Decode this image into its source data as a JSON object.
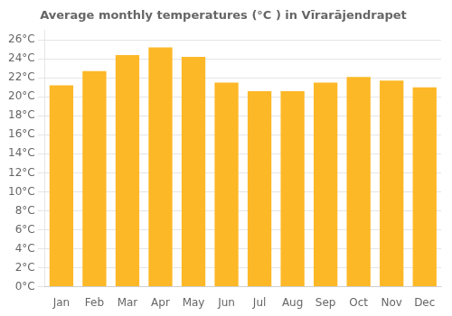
{
  "chart_data": {
    "type": "bar",
    "title": "Average monthly temperatures (°C ) in Vīrarājendrapet",
    "categories": [
      "Jan",
      "Feb",
      "Mar",
      "Apr",
      "May",
      "Jun",
      "Jul",
      "Aug",
      "Sep",
      "Oct",
      "Nov",
      "Dec"
    ],
    "values": [
      21.2,
      22.7,
      24.4,
      25.2,
      24.2,
      21.5,
      20.6,
      20.6,
      21.5,
      22.1,
      21.7,
      21.0
    ],
    "color": "#FDB827",
    "ylim": [
      0,
      27
    ],
    "yticks": [
      {
        "value": 0,
        "label": "0°C"
      },
      {
        "value": 2,
        "label": "2°C"
      },
      {
        "value": 4,
        "label": "4°C"
      },
      {
        "value": 6,
        "label": "6°C"
      },
      {
        "value": 8,
        "label": "8°C"
      },
      {
        "value": 10,
        "label": "10°C"
      },
      {
        "value": 12,
        "label": "12°C"
      },
      {
        "value": 14,
        "label": "14°C"
      },
      {
        "value": 16,
        "label": "16°C"
      },
      {
        "value": 18,
        "label": "18°C"
      },
      {
        "value": 20,
        "label": "20°C"
      },
      {
        "value": 22,
        "label": "22°C"
      },
      {
        "value": 24,
        "label": "24°C"
      },
      {
        "value": 26,
        "label": "26°C"
      }
    ],
    "grid": true
  }
}
